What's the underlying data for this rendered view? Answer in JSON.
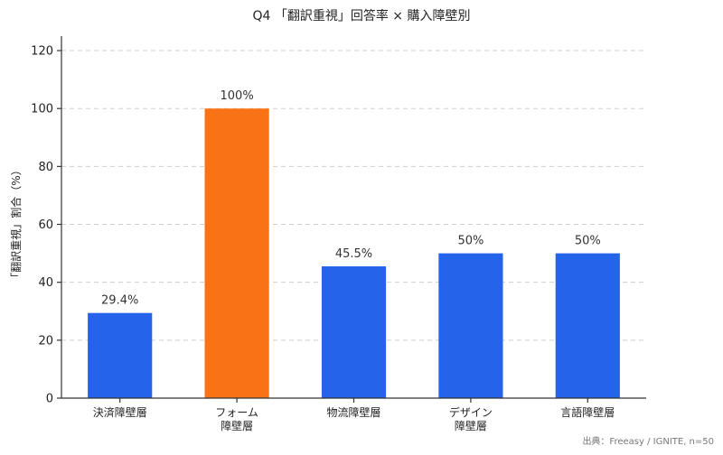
{
  "chart_data": {
    "type": "bar",
    "title": "Q4 「翻訳重視」回答率 × 購入障壁別",
    "ylabel": "「翻訳重視」割合（%）",
    "xlabel": "",
    "ylim": [
      0,
      125
    ],
    "yticks": [
      0,
      20,
      40,
      60,
      80,
      100,
      120
    ],
    "grid": true,
    "categories": [
      [
        "決済障壁層"
      ],
      [
        "フォーム",
        "障壁層"
      ],
      [
        "物流障壁層"
      ],
      [
        "デザイン",
        "障壁層"
      ],
      [
        "言語障壁層"
      ]
    ],
    "values": [
      29.4,
      100,
      45.5,
      50,
      50
    ],
    "value_labels": [
      "29.4%",
      "100%",
      "45.5%",
      "50%",
      "50%"
    ],
    "colors": [
      "#2563eb",
      "#f97316",
      "#2563eb",
      "#2563eb",
      "#2563eb"
    ],
    "source": "出典：Freeasy / IGNITE, n=50"
  }
}
